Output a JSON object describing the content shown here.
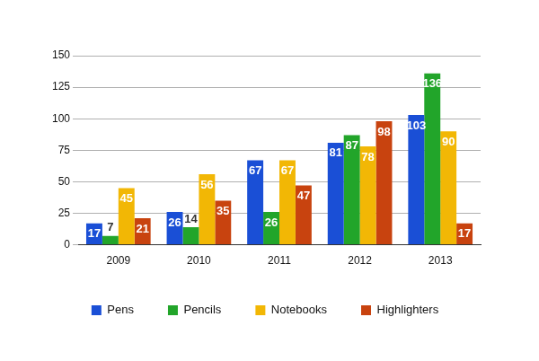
{
  "chart_data": {
    "type": "bar",
    "categories": [
      "2009",
      "2010",
      "2011",
      "2012",
      "2013"
    ],
    "series": [
      {
        "name": "Pens",
        "color": "#1a4fd6",
        "values": [
          17,
          26,
          67,
          81,
          103
        ]
      },
      {
        "name": "Pencils",
        "color": "#22a52a",
        "values": [
          7,
          14,
          26,
          87,
          136
        ]
      },
      {
        "name": "Notebooks",
        "color": "#f2b705",
        "values": [
          45,
          56,
          67,
          78,
          90
        ]
      },
      {
        "name": "Highlighters",
        "color": "#c8430f",
        "values": [
          21,
          35,
          47,
          98,
          17
        ]
      }
    ],
    "ylim": [
      0,
      150
    ],
    "yticks": [
      0,
      25,
      50,
      75,
      100,
      125,
      150
    ],
    "grid": true,
    "legend": "bottom",
    "data_labels": true
  }
}
